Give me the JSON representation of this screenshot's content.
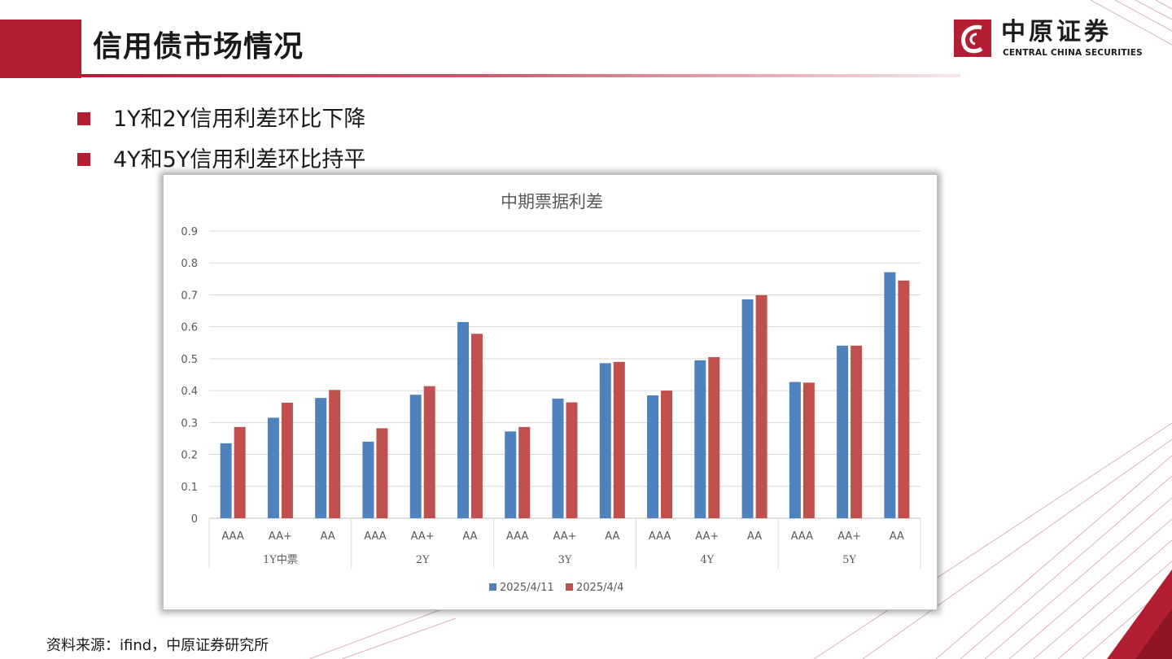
{
  "header": {
    "title": "信用债市场情况",
    "logo_cn": "中原证券",
    "logo_en": "CENTRAL CHINA SECURITIES"
  },
  "bullets": [
    "1Y和2Y信用利差环比下降",
    "4Y和5Y信用利差环比持平"
  ],
  "footer": {
    "source": "资料来源：ifind，中原证券研究所"
  },
  "colors": {
    "accent": "#b31e32",
    "series_blue": "#4f81bd",
    "series_red": "#c0504d"
  },
  "chart_data": {
    "type": "bar",
    "title": "中期票据利差",
    "ylim": [
      0,
      0.9
    ],
    "yticks": [
      "0",
      "0.1",
      "0.2",
      "0.3",
      "0.4",
      "0.5",
      "0.6",
      "0.7",
      "0.8",
      "0.9"
    ],
    "groups": [
      "1Y中票",
      "2Y",
      "3Y",
      "4Y",
      "5Y"
    ],
    "categories": [
      "AAA",
      "AA+",
      "AA",
      "AAA",
      "AA+",
      "AA",
      "AAA",
      "AA+",
      "AA",
      "AAA",
      "AA+",
      "AA",
      "AAA",
      "AA+",
      "AA"
    ],
    "series": [
      {
        "name": "2025/4/11",
        "color": "#4f81bd",
        "values": [
          0.235,
          0.315,
          0.377,
          0.24,
          0.387,
          0.615,
          0.272,
          0.375,
          0.486,
          0.385,
          0.495,
          0.686,
          0.427,
          0.541,
          0.771
        ]
      },
      {
        "name": "2025/4/4",
        "color": "#c0504d",
        "values": [
          0.286,
          0.362,
          0.402,
          0.282,
          0.414,
          0.578,
          0.286,
          0.363,
          0.49,
          0.4,
          0.505,
          0.699,
          0.425,
          0.541,
          0.745
        ]
      }
    ],
    "legend": "bottom",
    "grid": true
  }
}
